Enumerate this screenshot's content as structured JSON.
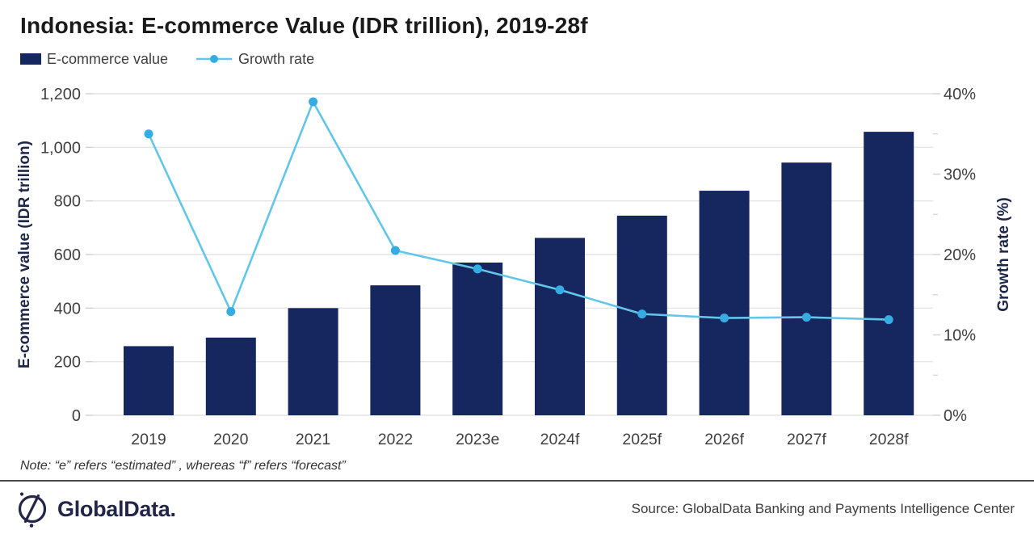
{
  "header": {
    "title": "Indonesia: E-commerce Value (IDR trillion), 2019-28f"
  },
  "legend": {
    "items": [
      {
        "label": "E-commerce value",
        "marker": "bar-swatch"
      },
      {
        "label": "Growth rate",
        "marker": "line-dot-marker"
      }
    ]
  },
  "chart_data": {
    "type": "bar+line",
    "title": "Indonesia: E-commerce Value (IDR trillion), 2019-28f",
    "categories": [
      "2019",
      "2020",
      "2021",
      "2022",
      "2023e",
      "2024f",
      "2025f",
      "2026f",
      "2027f",
      "2028f"
    ],
    "series": [
      {
        "name": "E-commerce value",
        "type": "bar",
        "axis": "left",
        "values": [
          258,
          290,
          400,
          485,
          570,
          662,
          745,
          838,
          943,
          1058
        ]
      },
      {
        "name": "Growth rate",
        "type": "line",
        "axis": "right",
        "values": [
          35,
          12.9,
          39,
          20.5,
          18.2,
          15.6,
          12.6,
          12.1,
          12.2,
          11.9
        ]
      }
    ],
    "y_left": {
      "label": "E-commerce value (IDR trillion)",
      "min": 0,
      "max": 1200,
      "tick_step": 200,
      "tick_labels": [
        "0",
        "200",
        "400",
        "600",
        "800",
        "1,000",
        "1,200"
      ]
    },
    "y_right": {
      "label": "Growth rate (%)",
      "min": 0,
      "max": 40,
      "tick_step": 10,
      "minor_tick_step": 5,
      "tick_labels": [
        "0%",
        "10%",
        "20%",
        "30%",
        "40%"
      ]
    },
    "grid": true,
    "legend_position": "top-left"
  },
  "colors": {
    "bar": "#16265E",
    "line": "#62C6E8",
    "dot": "#35ADE3",
    "grid": "#E4E4E4",
    "tick": "#CFCFCF",
    "tick_label": "#404040",
    "x_label": "#3F3F3F",
    "axis_title": "#1E2749"
  },
  "note": {
    "text": "Note: “e” refers “estimated” , whereas “f” refers “forecast”"
  },
  "footer": {
    "logo_text": "GlobalData.",
    "source": "Source: GlobalData Banking and Payments Intelligence Center"
  }
}
